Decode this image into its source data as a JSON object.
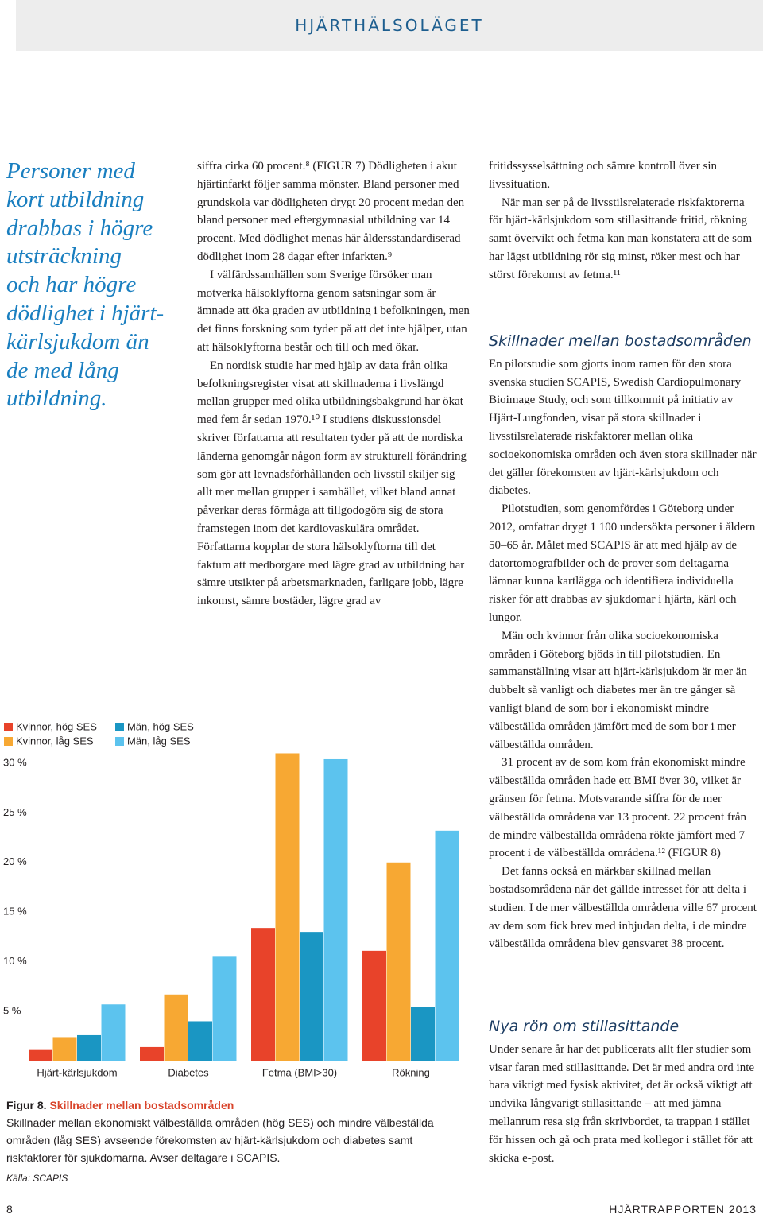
{
  "header": {
    "title": "HJÄRTHÄLSOLÄGET"
  },
  "quote": {
    "lines": [
      "Personer med",
      "kort utbildning",
      "drabbas i högre",
      "utsträckning",
      "och har högre",
      "dödlighet i hjärt-",
      "kärlsjukdom än",
      "de med lång",
      "utbildning."
    ]
  },
  "column2": {
    "paragraphs": [
      "siffra cirka 60 procent.⁸ (FIGUR 7) Dödligheten i akut hjärtinfarkt följer samma mönster. Bland personer med grundskola var dödligheten drygt 20 procent medan den bland personer med eftergymnasial utbildning var 14 procent. Med dödlighet menas här åldersstandardiserad dödlighet inom 28 dagar efter infarkten.⁹",
      "I välfärdssamhällen som Sverige försöker man motverka hälsoklyftorna genom satsningar som är ämnade att öka graden av utbildning i befolkningen, men det finns forskning som tyder på att det inte hjälper, utan att hälsoklyftorna består och till och med ökar.",
      "En nordisk studie har med hjälp av data från olika befolkningsregister visat att skillnaderna i livslängd mellan grupper med olika utbildningsbakgrund har ökat med fem år sedan 1970.¹⁰ I studiens diskussionsdel skriver författarna att resultaten tyder på att de nordiska länderna genomgår någon form av strukturell förändring som gör att levnadsförhållanden och livsstil skiljer sig allt mer mellan grupper i samhället, vilket bland annat påverkar deras förmåga att tillgodogöra sig de stora framstegen inom det kardiovaskulära området. Författarna kopplar de stora hälsoklyftorna till det faktum att medborgare med lägre grad av utbildning har sämre utsikter på arbetsmarknaden, farligare jobb, lägre inkomst, sämre bostäder, lägre grad av"
    ]
  },
  "column3": {
    "intro": [
      "fritidssysselsättning och sämre kontroll över sin livssituation.",
      "När man ser på de livsstilsrelaterade riskfaktorerna för hjärt-kärlsjukdom som stillasittande fritid, rökning samt övervikt och fetma kan man konstatera att de som har lägst utbildning rör sig minst, röker mest och har störst förekomst av fetma.¹¹"
    ],
    "section1": {
      "heading": "Skillnader mellan bostadsområden",
      "paragraphs": [
        "En pilotstudie som gjorts inom ramen för den stora svenska studien SCAPIS, Swedish Cardiopulmonary Bioimage Study, och som tillkommit på initiativ av Hjärt-Lungfonden, visar på stora skillnader i livsstilsrelaterade riskfaktorer mellan olika socioekonomiska områden och även stora skillnader när det gäller förekomsten av hjärt-kärlsjukdom och diabetes.",
        "Pilotstudien, som genomfördes i Göteborg under 2012, omfattar drygt 1 100 undersökta personer i åldern 50–65 år. Målet med SCAPIS är att med hjälp av de datortomografbilder och de prover som deltagarna lämnar kunna kartlägga och identifiera individuella risker för att drabbas av sjukdomar i hjärta, kärl och lungor.",
        "Män och kvinnor från olika socioekonomiska områden i Göteborg bjöds in till pilotstudien. En sammanställning visar att hjärt-kärlsjukdom är mer än dubbelt så vanligt och diabetes mer än tre gånger så vanligt bland de som bor i ekonomiskt mindre välbeställda områden jämfört med de som bor i mer välbeställda områden.",
        "31 procent av de som kom från ekonomiskt mindre välbeställda områden hade ett BMI över 30, vilket är gränsen för fetma. Motsvarande siffra för de mer välbeställda områdena var 13 procent. 22 procent från de mindre välbeställda områdena rökte jämfört med 7 procent i de välbeställda områdena.¹² (FIGUR 8)",
        "Det fanns också en märkbar skillnad mellan bostadsområdena när det gällde intresset för att delta i studien. I de mer välbeställda områdena ville 67 procent av dem som fick brev med inbjudan delta, i de mindre välbeställda områdena blev gensvaret 38 procent."
      ]
    },
    "section2": {
      "heading": "Nya rön om stillasittande",
      "paragraphs": [
        "Under senare år har det publicerats allt fler studier som visar faran med stillasittande. Det är med andra ord inte bara viktigt med fysisk aktivitet, det är också viktigt att undvika långvarigt stillasittande – att med jämna mellanrum resa sig från skrivbordet, ta trappan i stället för hissen och gå och prata med kollegor i stället för att skicka e-post."
      ]
    }
  },
  "chart_data": {
    "type": "bar",
    "categories": [
      "Hjärt-kärlsjukdom",
      "Diabetes",
      "Fetma (BMI>30)",
      "Rökning"
    ],
    "series": [
      {
        "name": "Kvinnor, hög SES",
        "color": "#e8432a",
        "values": [
          1.1,
          1.4,
          13.4,
          11.1
        ]
      },
      {
        "name": "Kvinnor, låg SES",
        "color": "#f7a833",
        "values": [
          2.4,
          6.7,
          31.0,
          20.0
        ]
      },
      {
        "name": "Män, hög SES",
        "color": "#1a96c3",
        "values": [
          2.6,
          4.0,
          13.0,
          5.4
        ]
      },
      {
        "name": "Män, låg SES",
        "color": "#5cc3ee",
        "values": [
          5.7,
          10.5,
          30.4,
          23.2
        ]
      }
    ],
    "ylim": [
      0,
      32
    ],
    "yticks": [
      {
        "value": 5,
        "label": "5 %"
      },
      {
        "value": 10,
        "label": "10 %"
      },
      {
        "value": 15,
        "label": "15 %"
      },
      {
        "value": 20,
        "label": "20 %"
      },
      {
        "value": 25,
        "label": "25 %"
      },
      {
        "value": 30,
        "label": "30 %"
      }
    ],
    "grid": false,
    "legend": "top-left"
  },
  "caption": {
    "label": "Figur 8.",
    "title": "Skillnader mellan bostadsområden",
    "text": "Skillnader mellan ekonomiskt välbeställda områden (hög SES) och mindre välbeställda områden (låg SES) avseende förekomsten av hjärt-kärlsjukdom och diabetes samt riskfaktorer för sjukdomarna. Avser deltagare i SCAPIS.",
    "source": "Källa: SCAPIS"
  },
  "footer": {
    "page": "8",
    "publication": "HJÄRTRAPPORTEN 2013"
  }
}
